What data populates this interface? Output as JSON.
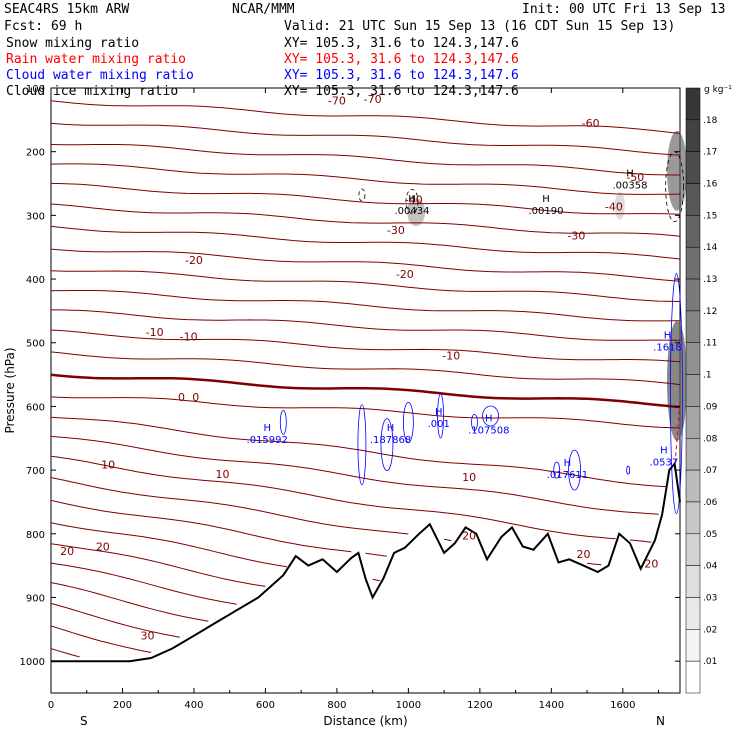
{
  "header": {
    "model": "SEAC4RS 15km ARW",
    "org": "NCAR/MMM",
    "init": "Init: 00 UTC Fri 13 Sep 13",
    "fcst": "Fcst:    69 h",
    "valid": "Valid: 21 UTC Sun 15 Sep 13 (16 CDT Sun 15 Sep 13)",
    "fields": [
      {
        "label": "Snow mixing ratio",
        "xy": "XY= 105.3, 31.6 to 124.3,147.6",
        "color": "#000000"
      },
      {
        "label": "Rain water mixing ratio",
        "xy": "XY= 105.3, 31.6 to 124.3,147.6",
        "color": "#ff0000"
      },
      {
        "label": "Cloud water mixing ratio",
        "xy": "XY= 105.3, 31.6 to 124.3,147.6",
        "color": "#0000ff"
      },
      {
        "label": "Cloud ice mixing ratio",
        "xy": "XY= 105.3, 31.6 to 124.3,147.6",
        "color": "#000000"
      }
    ]
  },
  "chart_data": {
    "type": "cross-section",
    "xlabel": "Distance (km)",
    "ylabel": "Pressure (hPa)",
    "xlim": [
      0,
      1760
    ],
    "ylim": [
      1050,
      100
    ],
    "x_ticks": [
      "0",
      "200",
      "400",
      "600",
      "800",
      "1000",
      "1200",
      "1400",
      "1600"
    ],
    "y_ticks": [
      "100",
      "200",
      "300",
      "400",
      "500",
      "600",
      "700",
      "800",
      "900",
      "1000"
    ],
    "x_end_labels": {
      "left": "S",
      "right": "N"
    },
    "colorbar": {
      "unit": "g kg⁻¹",
      "ticks": [
        ".01",
        ".02",
        ".03",
        ".04",
        ".05",
        ".06",
        ".07",
        ".08",
        ".09",
        ".1",
        ".11",
        ".12",
        ".13",
        ".14",
        ".15",
        ".16",
        ".17",
        ".18"
      ],
      "shading_field": "Cloud ice mixing ratio"
    },
    "temperature_isotherms_C": [
      -70,
      -60,
      -50,
      -40,
      -30,
      -20,
      -10,
      0,
      10,
      20,
      30
    ],
    "isotherm_color": "#800000",
    "zero_isotherm_color": "#800000",
    "isotherm_labels": [
      {
        "text": "-70",
        "x": 800,
        "p": 120
      },
      {
        "text": "-70",
        "x": 900,
        "p": 117
      },
      {
        "text": "-60",
        "x": 1510,
        "p": 155
      },
      {
        "text": "-50",
        "x": 1635,
        "p": 240
      },
      {
        "text": "-40",
        "x": 1015,
        "p": 275
      },
      {
        "text": "-40",
        "x": 1575,
        "p": 286
      },
      {
        "text": "-30",
        "x": 965,
        "p": 323
      },
      {
        "text": "-30",
        "x": 1470,
        "p": 332
      },
      {
        "text": "-20",
        "x": 400,
        "p": 370
      },
      {
        "text": "-20",
        "x": 990,
        "p": 392
      },
      {
        "text": "-10",
        "x": 290,
        "p": 483
      },
      {
        "text": "-10",
        "x": 385,
        "p": 490
      },
      {
        "text": "-10",
        "x": 1120,
        "p": 520
      },
      {
        "text": "0",
        "x": 365,
        "p": 585
      },
      {
        "text": "0",
        "x": 405,
        "p": 585
      },
      {
        "text": "10",
        "x": 160,
        "p": 691
      },
      {
        "text": "10",
        "x": 480,
        "p": 706
      },
      {
        "text": "10",
        "x": 1170,
        "p": 711
      },
      {
        "text": "20",
        "x": 45,
        "p": 827
      },
      {
        "text": "20",
        "x": 145,
        "p": 820
      },
      {
        "text": "20",
        "x": 1170,
        "p": 803
      },
      {
        "text": "20",
        "x": 1490,
        "p": 832
      },
      {
        "text": "20",
        "x": 1680,
        "p": 847
      },
      {
        "text": "30",
        "x": 270,
        "p": 960
      }
    ],
    "maxima": [
      {
        "field": "Snow mixing ratio",
        "letter": "H",
        "value": ".00434",
        "x": 1010,
        "p": 285
      },
      {
        "field": "Snow mixing ratio",
        "letter": "H",
        "value": ".00190",
        "x": 1385,
        "p": 285
      },
      {
        "field": "Snow mixing ratio",
        "letter": "H",
        "value": ".00358",
        "x": 1620,
        "p": 245
      },
      {
        "field": "Cloud water mixing ratio",
        "letter": "H",
        "value": ".015992",
        "x": 605,
        "p": 645
      },
      {
        "field": "Cloud water mixing ratio",
        "letter": "H",
        "value": ".187868",
        "x": 950,
        "p": 645
      },
      {
        "field": "Cloud water mixing ratio",
        "letter": "H",
        "value": ".001",
        "x": 1085,
        "p": 620
      },
      {
        "field": "Cloud water mixing ratio",
        "letter": "H",
        "value": ".107508",
        "x": 1225,
        "p": 630
      },
      {
        "field": "Cloud water mixing ratio",
        "letter": "H",
        "value": ".017611",
        "x": 1445,
        "p": 700
      },
      {
        "field": "Cloud water mixing ratio",
        "letter": "H",
        "value": ".0537",
        "x": 1715,
        "p": 680
      },
      {
        "field": "Cloud water mixing ratio",
        "letter": "H",
        "value": ".1618",
        "x": 1725,
        "p": 500
      }
    ],
    "terrain_surface_pressure": [
      [
        0,
        1000
      ],
      [
        100,
        1000
      ],
      [
        220,
        1000
      ],
      [
        280,
        995
      ],
      [
        340,
        980
      ],
      [
        400,
        960
      ],
      [
        460,
        940
      ],
      [
        520,
        920
      ],
      [
        580,
        900
      ],
      [
        620,
        880
      ],
      [
        650,
        865
      ],
      [
        685,
        835
      ],
      [
        720,
        850
      ],
      [
        760,
        840
      ],
      [
        800,
        860
      ],
      [
        840,
        838
      ],
      [
        860,
        830
      ],
      [
        880,
        870
      ],
      [
        900,
        900
      ],
      [
        930,
        870
      ],
      [
        960,
        830
      ],
      [
        990,
        822
      ],
      [
        1030,
        800
      ],
      [
        1060,
        785
      ],
      [
        1100,
        830
      ],
      [
        1130,
        815
      ],
      [
        1160,
        790
      ],
      [
        1190,
        800
      ],
      [
        1220,
        840
      ],
      [
        1260,
        805
      ],
      [
        1290,
        790
      ],
      [
        1320,
        820
      ],
      [
        1350,
        825
      ],
      [
        1390,
        800
      ],
      [
        1420,
        845
      ],
      [
        1450,
        840
      ],
      [
        1490,
        850
      ],
      [
        1530,
        860
      ],
      [
        1560,
        850
      ],
      [
        1590,
        800
      ],
      [
        1620,
        815
      ],
      [
        1650,
        855
      ],
      [
        1690,
        810
      ],
      [
        1710,
        770
      ],
      [
        1730,
        700
      ],
      [
        1745,
        690
      ],
      [
        1760,
        750
      ]
    ]
  }
}
